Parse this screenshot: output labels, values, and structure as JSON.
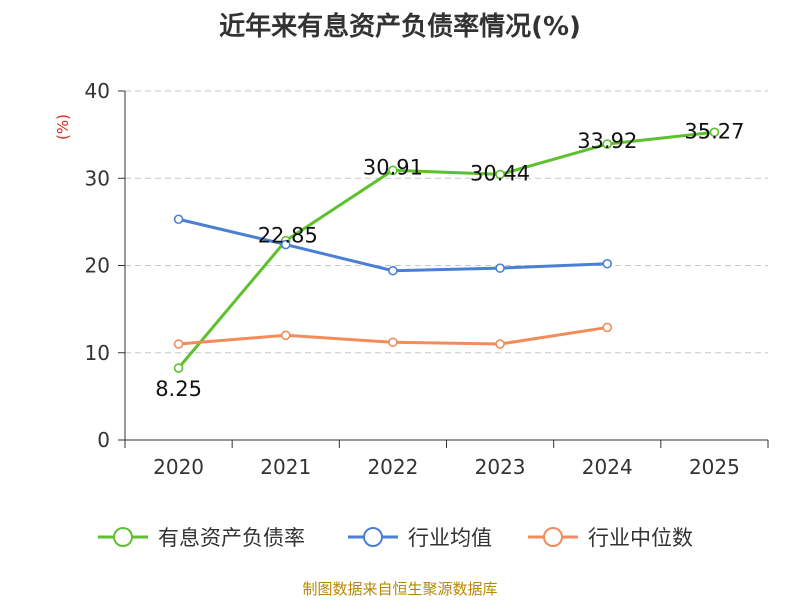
{
  "chart_data": {
    "type": "line",
    "title": "近年来有息资产负债率情况(%)",
    "ylabel": "(%)",
    "xlabel": "",
    "categories": [
      "2020",
      "2021",
      "2022",
      "2023",
      "2024",
      "2025"
    ],
    "ylim": [
      0,
      40
    ],
    "yticks": [
      0,
      10,
      20,
      30,
      40
    ],
    "grid": true,
    "legend_position": "bottom",
    "series": [
      {
        "name": "有息资产负债率",
        "color": "#5dc12f",
        "show_labels": true,
        "values": [
          8.25,
          22.85,
          30.91,
          30.44,
          33.92,
          35.27
        ],
        "labels": [
          "8.25",
          "22.85",
          "30.91",
          "30.44",
          "33.92",
          "35.27"
        ]
      },
      {
        "name": "行业均值",
        "color": "#4a7fd4",
        "show_labels": false,
        "values": [
          25.3,
          22.4,
          19.4,
          19.7,
          20.2,
          null
        ]
      },
      {
        "name": "行业中位数",
        "color": "#f28c5a",
        "show_labels": false,
        "values": [
          11.0,
          12.0,
          11.2,
          11.0,
          12.9,
          null
        ]
      }
    ],
    "source": "制图数据来自恒生聚源数据库"
  }
}
